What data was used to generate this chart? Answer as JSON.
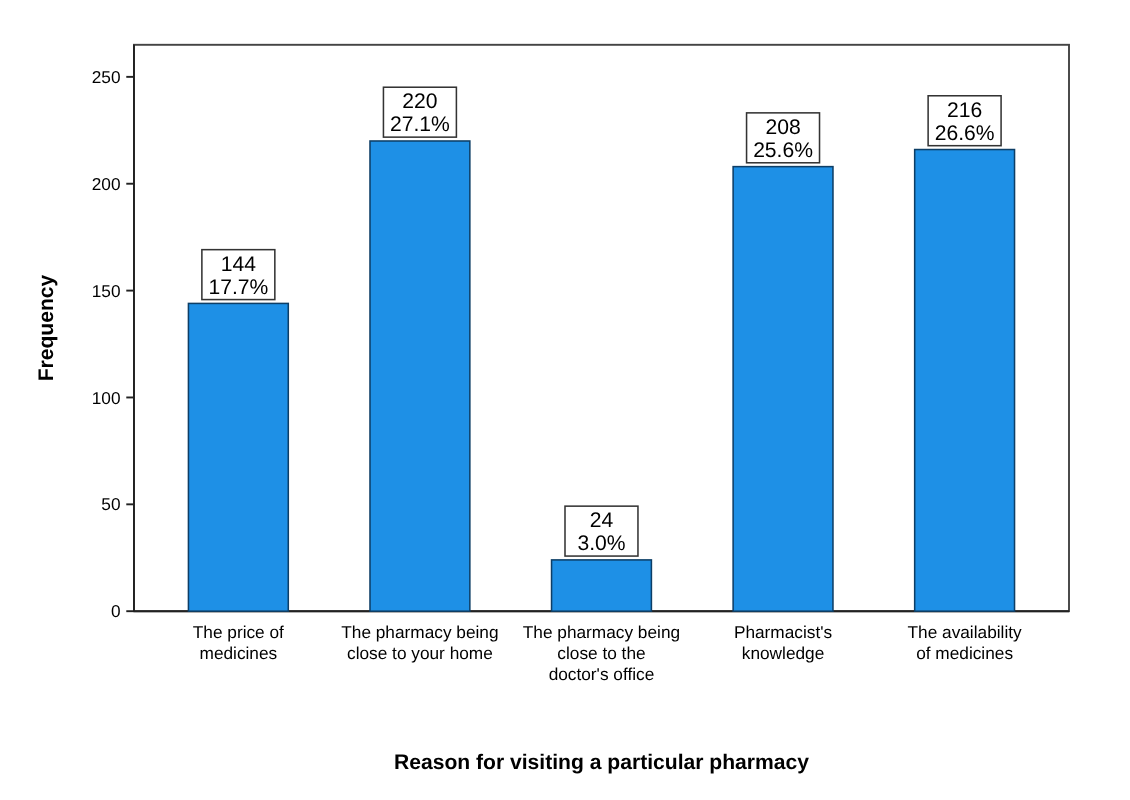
{
  "chart_data": {
    "type": "bar",
    "xlabel": "Reason for visiting a particular pharmacy",
    "ylabel": "Frequency",
    "categories": [
      "The price of medicines",
      "The pharmacy being close to your home",
      "The pharmacy being close to the doctor's office",
      "Pharmacist's knowledge",
      "The availability of medicines"
    ],
    "values": [
      144,
      220,
      24,
      208,
      216
    ],
    "color": "#1e90e6",
    "value_labels": [
      "144\n17.7%",
      "220\n27.1%",
      "24\n3.0%",
      "208\n25.6%",
      "216\n26.6%"
    ],
    "ylim": [
      0,
      265
    ],
    "yticks": [
      0,
      50,
      100,
      150,
      200,
      250
    ],
    "grid": false
  }
}
